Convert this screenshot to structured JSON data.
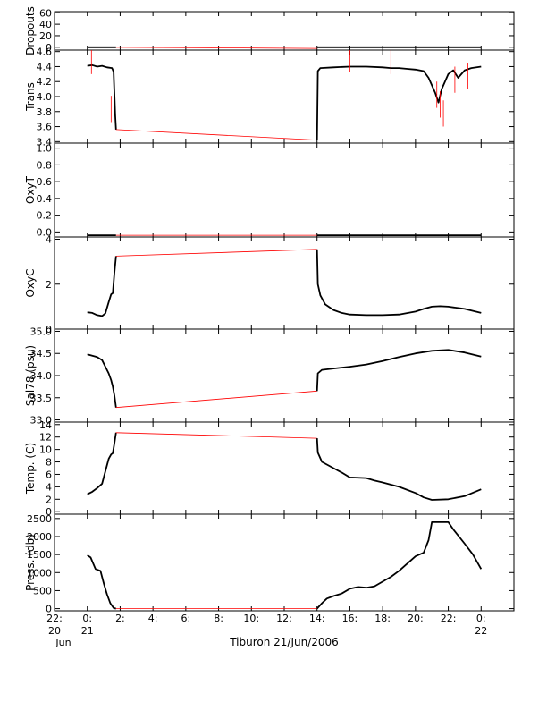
{
  "title": "Tiburon 21/Jun/2006",
  "x_axis": {
    "ticks": [
      {
        "h": -2,
        "l1": "22:",
        "l2": "20",
        "l3": "Jun"
      },
      {
        "h": 0,
        "l1": "0:",
        "l2": "21",
        "l3": ""
      },
      {
        "h": 2,
        "l1": "2:",
        "l2": "",
        "l3": ""
      },
      {
        "h": 4,
        "l1": "4:",
        "l2": "",
        "l3": ""
      },
      {
        "h": 6,
        "l1": "6:",
        "l2": "",
        "l3": ""
      },
      {
        "h": 8,
        "l1": "8:",
        "l2": "",
        "l3": ""
      },
      {
        "h": 10,
        "l1": "10:",
        "l2": "",
        "l3": ""
      },
      {
        "h": 12,
        "l1": "12:",
        "l2": "",
        "l3": ""
      },
      {
        "h": 14,
        "l1": "14:",
        "l2": "",
        "l3": ""
      },
      {
        "h": 16,
        "l1": "16:",
        "l2": "",
        "l3": ""
      },
      {
        "h": 18,
        "l1": "18:",
        "l2": "",
        "l3": ""
      },
      {
        "h": 20,
        "l1": "20:",
        "l2": "",
        "l3": ""
      },
      {
        "h": 22,
        "l1": "22:",
        "l2": "",
        "l3": ""
      },
      {
        "h": 24,
        "l1": "0:",
        "l2": "22",
        "l3": ""
      }
    ],
    "range": [
      -2,
      26
    ],
    "unit": "hours from 21/Jun/2006 00:00"
  },
  "chart_data": [
    {
      "type": "line",
      "ylabel": "Dropouts",
      "ylim": [
        -5,
        62
      ],
      "yticks": [
        "60",
        "40",
        "20",
        "0"
      ],
      "series": [
        {
          "color": "#000000",
          "x": [
            0,
            1.75
          ],
          "y": [
            0,
            0
          ]
        },
        {
          "color": "#ff0000",
          "x": [
            1.75,
            14.0
          ],
          "y": [
            0,
            -2
          ]
        },
        {
          "color": "#000000",
          "x": [
            14.0,
            24.0
          ],
          "y": [
            0,
            0
          ]
        }
      ]
    },
    {
      "type": "line",
      "ylabel": "Trans",
      "ylim": [
        3.38,
        4.62
      ],
      "yticks": [
        "4.6",
        "4.4",
        "4.2",
        "4.0",
        "3.8",
        "3.6",
        "3.4"
      ],
      "series": [
        {
          "color": "#000000",
          "x": [
            0,
            0.3,
            0.6,
            0.9,
            1.2,
            1.5,
            1.6,
            1.7,
            1.75
          ],
          "y": [
            4.41,
            4.42,
            4.4,
            4.41,
            4.39,
            4.38,
            4.33,
            3.75,
            3.56
          ]
        },
        {
          "color": "#ff0000",
          "x": [
            1.75,
            14.0
          ],
          "y": [
            3.56,
            3.42
          ]
        },
        {
          "color": "#000000",
          "x": [
            14.0,
            14.05,
            14.2,
            15,
            16,
            17,
            18,
            18.5,
            19,
            19.5,
            20,
            20.5,
            20.8,
            21.0,
            21.2,
            21.4,
            21.6,
            21.8,
            22.0,
            22.3,
            22.6,
            23.0,
            23.4,
            24.0
          ],
          "y": [
            3.42,
            4.34,
            4.38,
            4.39,
            4.4,
            4.4,
            4.39,
            4.38,
            4.38,
            4.37,
            4.36,
            4.34,
            4.25,
            4.15,
            4.05,
            3.92,
            4.1,
            4.2,
            4.3,
            4.35,
            4.25,
            4.35,
            4.38,
            4.4
          ]
        }
      ],
      "spikes": [
        {
          "x": 21.3,
          "y": 3.85
        },
        {
          "x": 21.5,
          "y": 3.72
        },
        {
          "x": 21.7,
          "y": 3.6
        },
        {
          "x": 22.4,
          "y": 4.05
        },
        {
          "x": 23.2,
          "y": 4.1
        },
        {
          "x": 1.45,
          "y": 3.66
        },
        {
          "x": 0.25,
          "y": 4.3
        },
        {
          "x": 18.5,
          "y": 4.3
        },
        {
          "x": 16.0,
          "y": 4.33
        }
      ]
    },
    {
      "type": "line",
      "ylabel": "OxyT",
      "ylim": [
        -0.06,
        1.06
      ],
      "yticks": [
        "1.0",
        "0.8",
        "0.6",
        "0.4",
        "0.2",
        "0.0"
      ],
      "series": [
        {
          "color": "#000000",
          "x": [
            0,
            1.75
          ],
          "y": [
            -0.04,
            -0.04
          ]
        },
        {
          "color": "#ff0000",
          "x": [
            1.75,
            14.0
          ],
          "y": [
            -0.04,
            -0.04
          ]
        },
        {
          "color": "#000000",
          "x": [
            14.0,
            24.0
          ],
          "y": [
            -0.04,
            -0.04
          ]
        }
      ]
    },
    {
      "type": "line",
      "ylabel": "OxyC",
      "ylim": [
        0,
        4.1
      ],
      "yticks": [
        "4",
        "2",
        "0"
      ],
      "series": [
        {
          "color": "#000000",
          "x": [
            0,
            0.3,
            0.6,
            0.9,
            1.1,
            1.3,
            1.45,
            1.55,
            1.65,
            1.75
          ],
          "y": [
            0.75,
            0.72,
            0.62,
            0.58,
            0.7,
            1.2,
            1.55,
            1.6,
            2.5,
            3.25
          ]
        },
        {
          "color": "#ff0000",
          "x": [
            1.75,
            14.0
          ],
          "y": [
            3.25,
            3.55
          ]
        },
        {
          "color": "#000000",
          "x": [
            14.0,
            14.05,
            14.2,
            14.5,
            15,
            15.5,
            16,
            17,
            18,
            19,
            20,
            20.5,
            21,
            21.5,
            22,
            23,
            24
          ],
          "y": [
            3.55,
            2.0,
            1.5,
            1.1,
            0.85,
            0.72,
            0.65,
            0.62,
            0.62,
            0.65,
            0.78,
            0.9,
            1.0,
            1.02,
            1.0,
            0.9,
            0.72
          ]
        }
      ]
    },
    {
      "type": "line",
      "ylabel": "Sal78 (psu)",
      "ylim": [
        32.95,
        35.05
      ],
      "yticks": [
        "35.0",
        "34.5",
        "34.0",
        "33.5",
        "33.0"
      ],
      "series": [
        {
          "color": "#000000",
          "x": [
            0,
            0.3,
            0.6,
            0.9,
            1.1,
            1.3,
            1.45,
            1.55,
            1.65,
            1.75
          ],
          "y": [
            34.48,
            34.45,
            34.42,
            34.35,
            34.2,
            34.05,
            33.9,
            33.75,
            33.55,
            33.28
          ]
        },
        {
          "color": "#ff0000",
          "x": [
            1.75,
            14.0
          ],
          "y": [
            33.28,
            33.65
          ]
        },
        {
          "color": "#000000",
          "x": [
            14.0,
            14.05,
            14.3,
            15,
            16,
            17,
            18,
            19,
            20,
            21,
            22,
            23,
            24
          ],
          "y": [
            33.65,
            34.05,
            34.13,
            34.16,
            34.2,
            34.25,
            34.33,
            34.42,
            34.5,
            34.56,
            34.58,
            34.52,
            34.43
          ]
        }
      ]
    },
    {
      "type": "line",
      "ylabel": "Temp. (C)",
      "ylim": [
        -0.4,
        14.4
      ],
      "yticks": [
        "14",
        "12",
        "10",
        "8",
        "6",
        "4",
        "2",
        "0"
      ],
      "series": [
        {
          "color": "#000000",
          "x": [
            0,
            0.3,
            0.6,
            0.9,
            1.1,
            1.3,
            1.45,
            1.55,
            1.65,
            1.75
          ],
          "y": [
            2.8,
            3.2,
            3.8,
            4.5,
            6.5,
            8.5,
            9.2,
            9.4,
            11.0,
            12.7
          ]
        },
        {
          "color": "#ff0000",
          "x": [
            1.75,
            14.0
          ],
          "y": [
            12.7,
            11.8
          ]
        },
        {
          "color": "#000000",
          "x": [
            14.0,
            14.05,
            14.3,
            15,
            15.5,
            16,
            17,
            17.5,
            18,
            19,
            20,
            20.5,
            21,
            22,
            23,
            24
          ],
          "y": [
            11.8,
            9.5,
            8.0,
            7.0,
            6.3,
            5.5,
            5.4,
            5.0,
            4.7,
            4.0,
            3.0,
            2.3,
            1.9,
            2.0,
            2.5,
            3.6
          ]
        }
      ]
    },
    {
      "type": "line",
      "ylabel": "Press. (db)",
      "ylim": [
        -60,
        2620
      ],
      "yticks": [
        "2500",
        "2000",
        "1500",
        "1000",
        "500",
        "0"
      ],
      "series": [
        {
          "color": "#000000",
          "x": [
            0,
            0.2,
            0.5,
            0.8,
            1.0,
            1.2,
            1.4,
            1.6,
            1.75
          ],
          "y": [
            1480,
            1420,
            1100,
            1050,
            700,
            400,
            150,
            20,
            0
          ]
        },
        {
          "color": "#ff0000",
          "x": [
            1.75,
            14.0
          ],
          "y": [
            0,
            0
          ]
        },
        {
          "color": "#000000",
          "x": [
            14.0,
            14.3,
            14.6,
            15,
            15.5,
            16,
            16.5,
            17,
            17.5,
            18,
            18.5,
            19,
            19.5,
            20,
            20.5,
            20.8,
            21.0,
            21.2,
            22.0,
            22.3,
            23.0,
            23.5,
            24.0
          ],
          "y": [
            0,
            150,
            280,
            350,
            420,
            550,
            600,
            580,
            620,
            750,
            880,
            1050,
            1250,
            1450,
            1550,
            1900,
            2400,
            2400,
            2400,
            2200,
            1800,
            1500,
            1100
          ]
        }
      ]
    }
  ]
}
